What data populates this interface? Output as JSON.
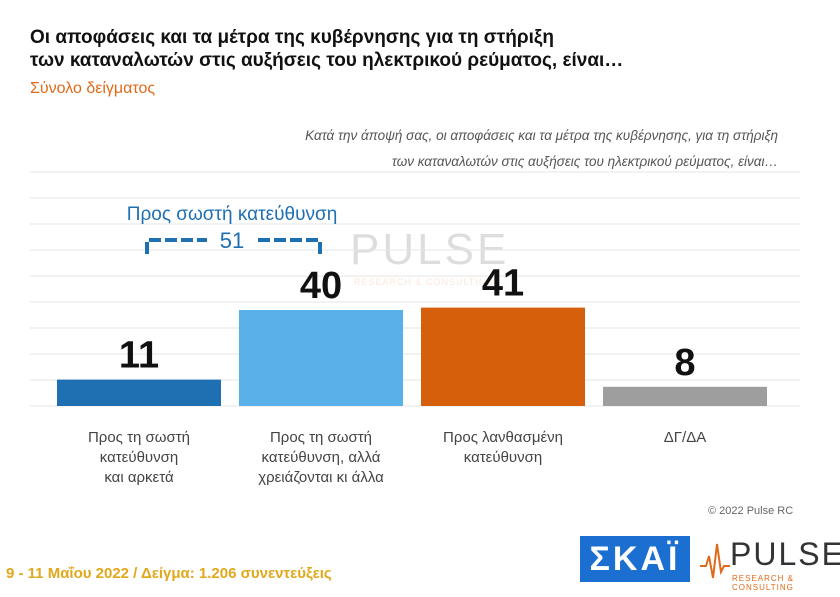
{
  "header": {
    "title_line1": "Οι αποφάσεις και τα μέτρα της κυβέρνησης για τη στήριξη",
    "title_line2": "των καταναλωτών στις αυξήσεις του ηλεκτρικού ρεύματος, είναι…",
    "subtitle": "Σύνολο δείγματος"
  },
  "question": {
    "line1": "Κατά την άποψή σας, οι αποφάσεις και τα μέτρα της κυβέρνησης, για τη στήριξη",
    "line2": "των καταναλωτών στις αυξήσεις του ηλεκτρικού ρεύματος, είναι…"
  },
  "chart_data": {
    "type": "bar",
    "categories": [
      [
        "Προς τη σωστή",
        "κατεύθυνση",
        "και αρκετά"
      ],
      [
        "Προς τη σωστή",
        "κατεύθυνση, αλλά",
        "χρειάζονται κι άλλα"
      ],
      [
        "Προς λανθασμένη",
        "κατεύθυνση"
      ],
      [
        "ΔΓ/ΔΑ"
      ]
    ],
    "values": [
      11,
      40,
      41,
      8
    ],
    "colors": [
      "#1f6fb3",
      "#5ab0e8",
      "#d65f0c",
      "#9e9e9e"
    ],
    "ylim": [
      0,
      45
    ],
    "grid": true,
    "bracket": {
      "label": "Προς σωστή κατεύθυνση",
      "value": "51",
      "color": "#1f6fb3"
    }
  },
  "copyright": "© 2022 Pulse RC",
  "footer": "9 - 11  Μαΐου  2022  /  Δείγμα:  1.206 συνεντεύξεις",
  "logos": {
    "skai": "ΣΚΑΪ",
    "pulse": "PULSE",
    "pulse_tag": "RESEARCH & CONSULTING"
  }
}
